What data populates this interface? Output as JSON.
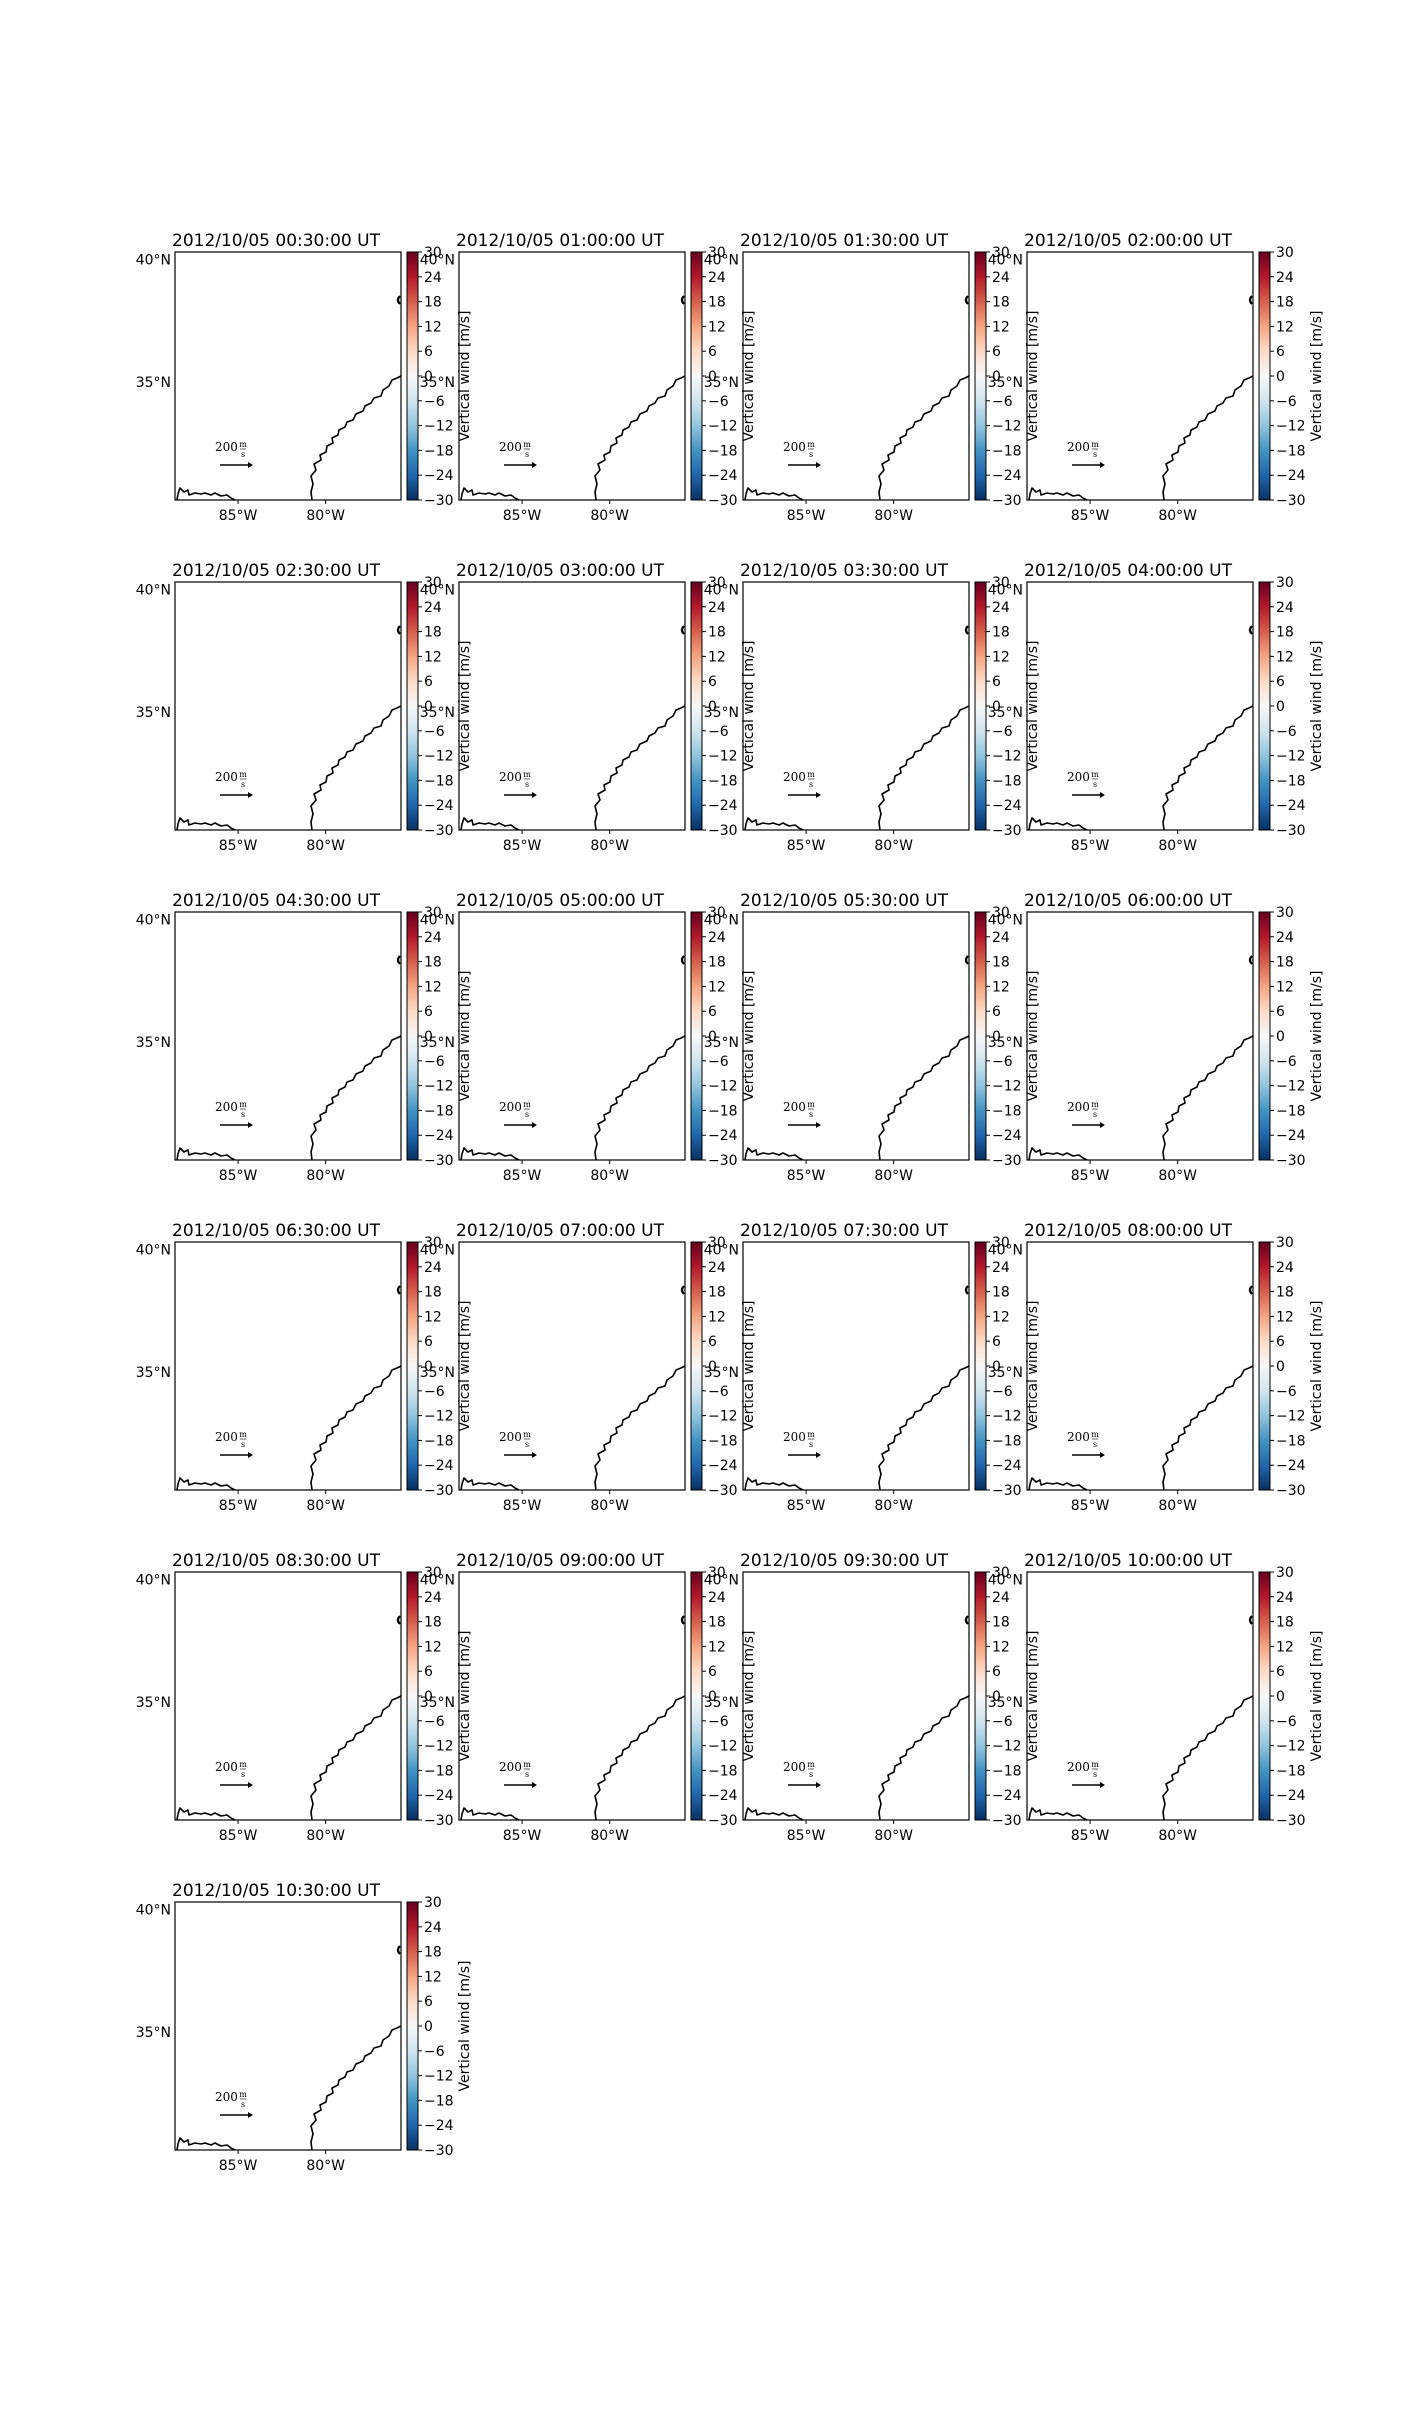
{
  "figure": {
    "colormap": "RdBu_r",
    "colors": {
      "map_frame": "#000000",
      "coastline": "#000000",
      "colorbar_stops": [
        "#053061",
        "#2166ac",
        "#4393c3",
        "#92c5de",
        "#d1e5f0",
        "#f7f7f7",
        "#fddbc7",
        "#f4a582",
        "#d6604d",
        "#b2182b",
        "#67001f"
      ]
    }
  },
  "chart_data": {
    "type": "map-panels",
    "lat_ticks": [
      "40°N",
      "35°N"
    ],
    "lon_ticks": [
      "85°W",
      "80°W"
    ],
    "colorbar": {
      "label": "Vertical wind [m/s]",
      "ticks": [
        "30",
        "24",
        "18",
        "12",
        "6",
        "0",
        "−6",
        "−12",
        "−18",
        "−24",
        "−30"
      ],
      "range": [
        -30,
        30
      ]
    },
    "reference_vector": {
      "value": "200",
      "unit_num": "m",
      "unit_den": "s"
    },
    "panels": [
      {
        "title": "2012/10/05 00:30:00 UT"
      },
      {
        "title": "2012/10/05 01:00:00 UT"
      },
      {
        "title": "2012/10/05 01:30:00 UT"
      },
      {
        "title": "2012/10/05 02:00:00 UT"
      },
      {
        "title": "2012/10/05 02:30:00 UT"
      },
      {
        "title": "2012/10/05 03:00:00 UT"
      },
      {
        "title": "2012/10/05 03:30:00 UT"
      },
      {
        "title": "2012/10/05 04:00:00 UT"
      },
      {
        "title": "2012/10/05 04:30:00 UT"
      },
      {
        "title": "2012/10/05 05:00:00 UT"
      },
      {
        "title": "2012/10/05 05:30:00 UT"
      },
      {
        "title": "2012/10/05 06:00:00 UT"
      },
      {
        "title": "2012/10/05 06:30:00 UT"
      },
      {
        "title": "2012/10/05 07:00:00 UT"
      },
      {
        "title": "2012/10/05 07:30:00 UT"
      },
      {
        "title": "2012/10/05 08:00:00 UT"
      },
      {
        "title": "2012/10/05 08:30:00 UT"
      },
      {
        "title": "2012/10/05 09:00:00 UT"
      },
      {
        "title": "2012/10/05 09:30:00 UT"
      },
      {
        "title": "2012/10/05 10:00:00 UT"
      },
      {
        "title": "2012/10/05 10:30:00 UT"
      }
    ]
  }
}
